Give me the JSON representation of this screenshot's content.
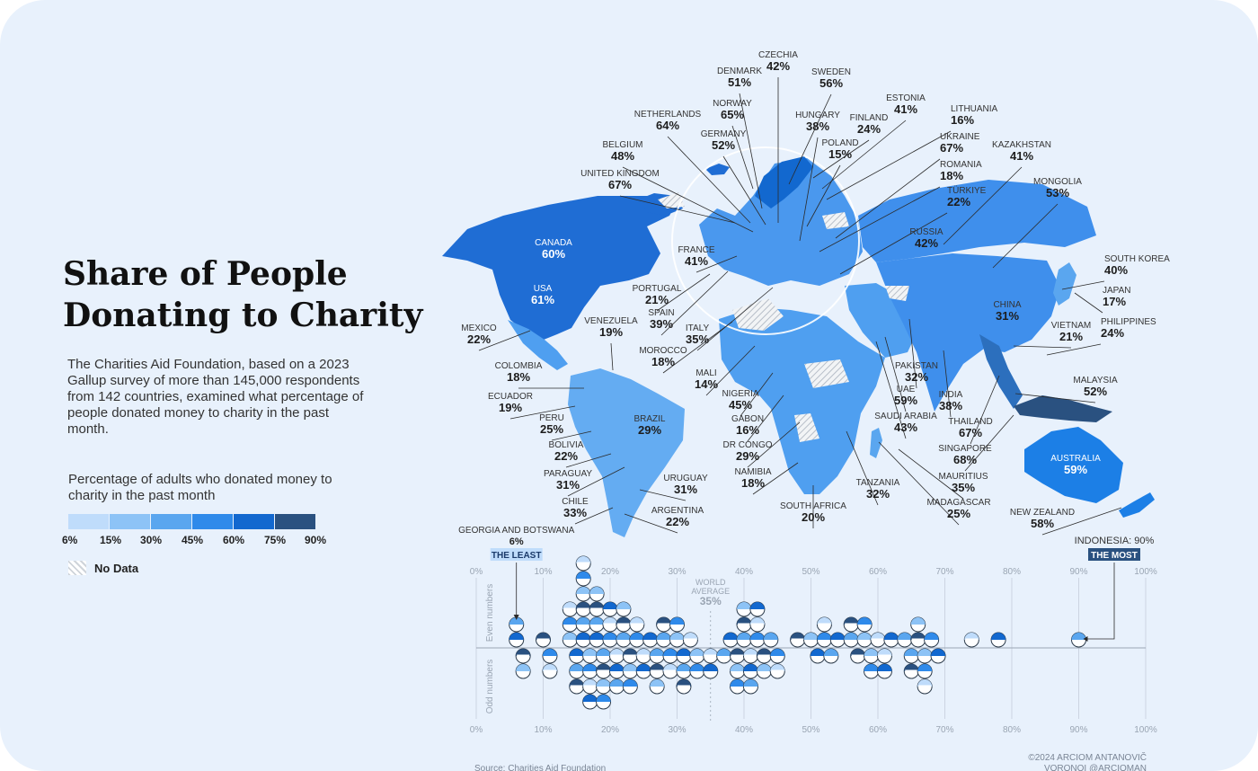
{
  "title_line1": "Share of People",
  "title_line2": "Donating to Charity",
  "description": "The Charities Aid Foundation, based on a 2023 Gallup survey of more than 145,000 respondents from 142 countries, examined what percentage of people donated money to charity in the past month.",
  "legend": {
    "title": "Percentage of adults who donated money to charity in the past month",
    "ticks": [
      "6%",
      "15%",
      "30%",
      "45%",
      "60%",
      "75%",
      "90%"
    ],
    "colors": [
      "#bfdcfb",
      "#8dc3f6",
      "#5aa6ef",
      "#2f8aea",
      "#1268cf",
      "#2a5180"
    ],
    "no_data": "No Data"
  },
  "credit_line1": "©2024 ARCIOM ANTANOVIČ",
  "credit_line2": "VORONOI @ARCIOMAN",
  "source": "Source: Charities Aid Foundation",
  "chart_data": [
    {
      "type": "choropleth",
      "value_unit": "%",
      "countries": [
        {
          "name": "CZECHIA",
          "value": 42
        },
        {
          "name": "DENMARK",
          "value": 51
        },
        {
          "name": "SWEDEN",
          "value": 56
        },
        {
          "name": "ESTONIA",
          "value": 41
        },
        {
          "name": "NORWAY",
          "value": 65
        },
        {
          "name": "NETHERLANDS",
          "value": 64
        },
        {
          "name": "HUNGARY",
          "value": 38
        },
        {
          "name": "FINLAND",
          "value": 24
        },
        {
          "name": "LITHUANIA",
          "value": 16
        },
        {
          "name": "GERMANY",
          "value": 52
        },
        {
          "name": "BELGIUM",
          "value": 48
        },
        {
          "name": "POLAND",
          "value": 15
        },
        {
          "name": "UKRAINE",
          "value": 67
        },
        {
          "name": "KAZAKHSTAN",
          "value": 41
        },
        {
          "name": "UNITED KINGDOM",
          "value": 67
        },
        {
          "name": "ROMANIA",
          "value": 18
        },
        {
          "name": "TÜRKIYE",
          "value": 22
        },
        {
          "name": "MONGOLIA",
          "value": 53
        },
        {
          "name": "CANADA",
          "value": 60
        },
        {
          "name": "FRANCE",
          "value": 41
        },
        {
          "name": "RUSSIA",
          "value": 42
        },
        {
          "name": "SOUTH KOREA",
          "value": 40
        },
        {
          "name": "USA",
          "value": 61
        },
        {
          "name": "PORTUGAL",
          "value": 21
        },
        {
          "name": "JAPAN",
          "value": 17
        },
        {
          "name": "SPAIN",
          "value": 39
        },
        {
          "name": "CHINA",
          "value": 31
        },
        {
          "name": "MEXICO",
          "value": 22
        },
        {
          "name": "VENEZUELA",
          "value": 19
        },
        {
          "name": "ITALY",
          "value": 35
        },
        {
          "name": "VIETNAM",
          "value": 21
        },
        {
          "name": "PHILIPPINES",
          "value": 24
        },
        {
          "name": "MOROCCO",
          "value": 18
        },
        {
          "name": "COLOMBIA",
          "value": 18
        },
        {
          "name": "PAKISTAN",
          "value": 32
        },
        {
          "name": "MALI",
          "value": 14
        },
        {
          "name": "MALAYSIA",
          "value": 52
        },
        {
          "name": "UAE",
          "value": 59
        },
        {
          "name": "ECUADOR",
          "value": 19
        },
        {
          "name": "NIGERIA",
          "value": 45
        },
        {
          "name": "INDIA",
          "value": 38
        },
        {
          "name": "BRAZIL",
          "value": 29
        },
        {
          "name": "SAUDI ARABIA",
          "value": 43
        },
        {
          "name": "PERU",
          "value": 25
        },
        {
          "name": "GABON",
          "value": 16
        },
        {
          "name": "THAILAND",
          "value": 67
        },
        {
          "name": "BOLIVIA",
          "value": 22
        },
        {
          "name": "DR CONGO",
          "value": 29
        },
        {
          "name": "SINGAPORE",
          "value": 68
        },
        {
          "name": "AUSTRALIA",
          "value": 59
        },
        {
          "name": "PARAGUAY",
          "value": 31
        },
        {
          "name": "URUGUAY",
          "value": 31
        },
        {
          "name": "NAMIBIA",
          "value": 18
        },
        {
          "name": "MAURITIUS",
          "value": 35
        },
        {
          "name": "TANZANIA",
          "value": 32
        },
        {
          "name": "CHILE",
          "value": 33
        },
        {
          "name": "MADAGASCAR",
          "value": 25
        },
        {
          "name": "ARGENTINA",
          "value": 22
        },
        {
          "name": "SOUTH AFRICA",
          "value": 20
        },
        {
          "name": "NEW ZEALAND",
          "value": 58
        }
      ]
    },
    {
      "type": "scatter",
      "x_axis": {
        "ticks": [
          "0%",
          "10%",
          "20%",
          "30%",
          "40%",
          "50%",
          "60%",
          "70%",
          "80%",
          "90%",
          "100%"
        ],
        "range": [
          0,
          100
        ]
      },
      "row_labels": {
        "top": "Even numbers",
        "bottom": "Odd numbers"
      },
      "least": {
        "name": "GEORGIA AND BOTSWANA",
        "value": 6,
        "value_label": "6%",
        "tag": "THE LEAST"
      },
      "most": {
        "name": "INDONESIA",
        "value": 90,
        "value_label": "90%",
        "tag": "THE MOST"
      },
      "world_average": {
        "label_line1": "WORLD",
        "label_line2": "AVERAGE",
        "value": 35,
        "value_label": "35%"
      },
      "even_counts": [
        [
          6,
          2
        ],
        [
          10,
          1
        ],
        [
          14,
          3
        ],
        [
          16,
          6
        ],
        [
          18,
          4
        ],
        [
          20,
          3
        ],
        [
          22,
          3
        ],
        [
          24,
          2
        ],
        [
          26,
          1
        ],
        [
          28,
          2
        ],
        [
          30,
          2
        ],
        [
          32,
          1
        ],
        [
          38,
          1
        ],
        [
          40,
          3
        ],
        [
          42,
          3
        ],
        [
          44,
          1
        ],
        [
          48,
          1
        ],
        [
          50,
          1
        ],
        [
          52,
          2
        ],
        [
          54,
          1
        ],
        [
          56,
          2
        ],
        [
          58,
          2
        ],
        [
          60,
          1
        ],
        [
          62,
          1
        ],
        [
          64,
          1
        ],
        [
          66,
          2
        ],
        [
          68,
          1
        ],
        [
          74,
          1
        ],
        [
          78,
          1
        ],
        [
          90,
          1
        ]
      ],
      "odd_counts": [
        [
          7,
          2
        ],
        [
          11,
          2
        ],
        [
          15,
          3
        ],
        [
          17,
          4
        ],
        [
          19,
          4
        ],
        [
          21,
          3
        ],
        [
          23,
          3
        ],
        [
          25,
          2
        ],
        [
          27,
          3
        ],
        [
          29,
          2
        ],
        [
          31,
          3
        ],
        [
          33,
          2
        ],
        [
          35,
          2
        ],
        [
          37,
          1
        ],
        [
          39,
          3
        ],
        [
          41,
          3
        ],
        [
          43,
          2
        ],
        [
          45,
          2
        ],
        [
          51,
          1
        ],
        [
          53,
          1
        ],
        [
          57,
          1
        ],
        [
          59,
          2
        ],
        [
          61,
          2
        ],
        [
          65,
          2
        ],
        [
          67,
          3
        ],
        [
          69,
          1
        ]
      ]
    }
  ]
}
